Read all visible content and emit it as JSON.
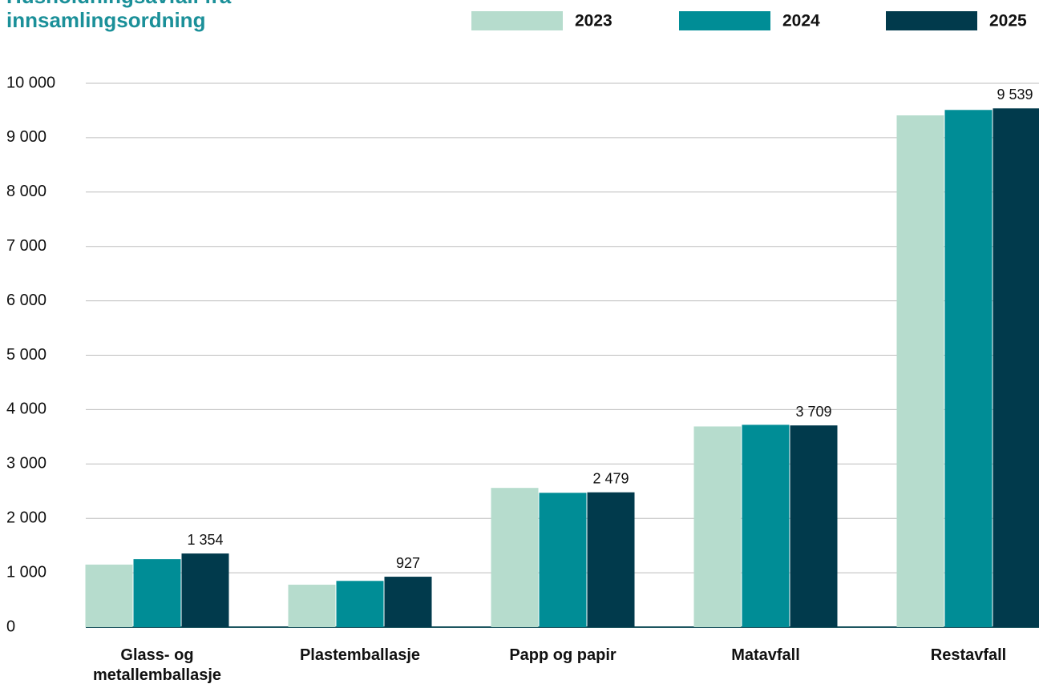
{
  "chart_data": {
    "type": "bar",
    "title": "Husholdningsavfall fra innsamlingsordning",
    "categories": [
      "Glass- og metallemballasje",
      "Plastemballasje",
      "Papp og papir",
      "Matavfall",
      "Restavfall"
    ],
    "series": [
      {
        "name": "2023",
        "color": "#b6dccd",
        "values": [
          1150,
          780,
          2560,
          3690,
          9410
        ]
      },
      {
        "name": "2024",
        "color": "#008d96",
        "values": [
          1250,
          850,
          2470,
          3720,
          9510
        ]
      },
      {
        "name": "2025",
        "color": "#013a4c",
        "values": [
          1354,
          927,
          2479,
          3709,
          9539
        ],
        "value_labels": [
          "1 354",
          "927",
          "2 479",
          "3 709",
          "9 539"
        ]
      }
    ],
    "ylim": [
      0,
      10000
    ],
    "yticks": [
      0,
      {
        "value": 1000,
        "label": "1 000"
      },
      {
        "value": 2000,
        "label": "2 000"
      },
      {
        "value": 3000,
        "label": "3 000"
      },
      {
        "value": 4000,
        "label": "4 000"
      },
      {
        "value": 5000,
        "label": "5 000"
      },
      {
        "value": 6000,
        "label": "6 000"
      },
      {
        "value": 7000,
        "label": "7 000"
      },
      {
        "value": 8000,
        "label": "8 000"
      },
      {
        "value": 9000,
        "label": "9 000"
      },
      {
        "value": 10000,
        "label": "10 000"
      }
    ],
    "grid": true,
    "legend": "top-right"
  }
}
